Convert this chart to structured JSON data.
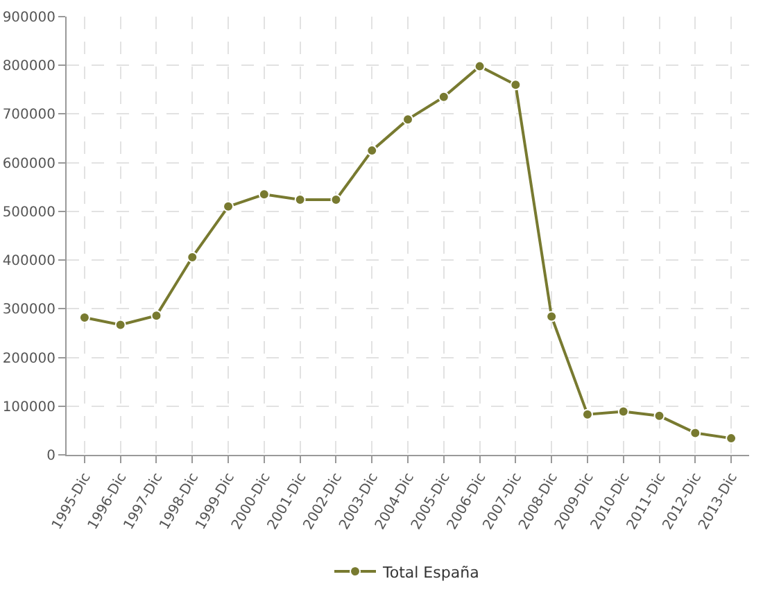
{
  "chart_data": {
    "type": "line",
    "categories": [
      "1995-Dic",
      "1996-Dic",
      "1997-Dic",
      "1998-Dic",
      "1999-Dic",
      "2000-Dic",
      "2001-Dic",
      "2002-Dic",
      "2003-Dic",
      "2004-Dic",
      "2005-Dic",
      "2006-Dic",
      "2007-Dic",
      "2008-Dic",
      "2009-Dic",
      "2010-Dic",
      "2011-Dic",
      "2012-Dic",
      "2013-Dic"
    ],
    "series": [
      {
        "name": "Total España",
        "color": "#787a30",
        "values": [
          282000,
          267000,
          286000,
          406000,
          510000,
          535000,
          524000,
          524000,
          625000,
          689000,
          735000,
          798000,
          760000,
          284000,
          83000,
          89000,
          80000,
          45000,
          34000
        ]
      }
    ],
    "ylim": [
      0,
      900000
    ],
    "yticks": [
      0,
      100000,
      200000,
      300000,
      400000,
      500000,
      600000,
      700000,
      800000,
      900000
    ],
    "grid": true,
    "legend": "bottom",
    "marker": "circle",
    "line_style": "solid"
  }
}
